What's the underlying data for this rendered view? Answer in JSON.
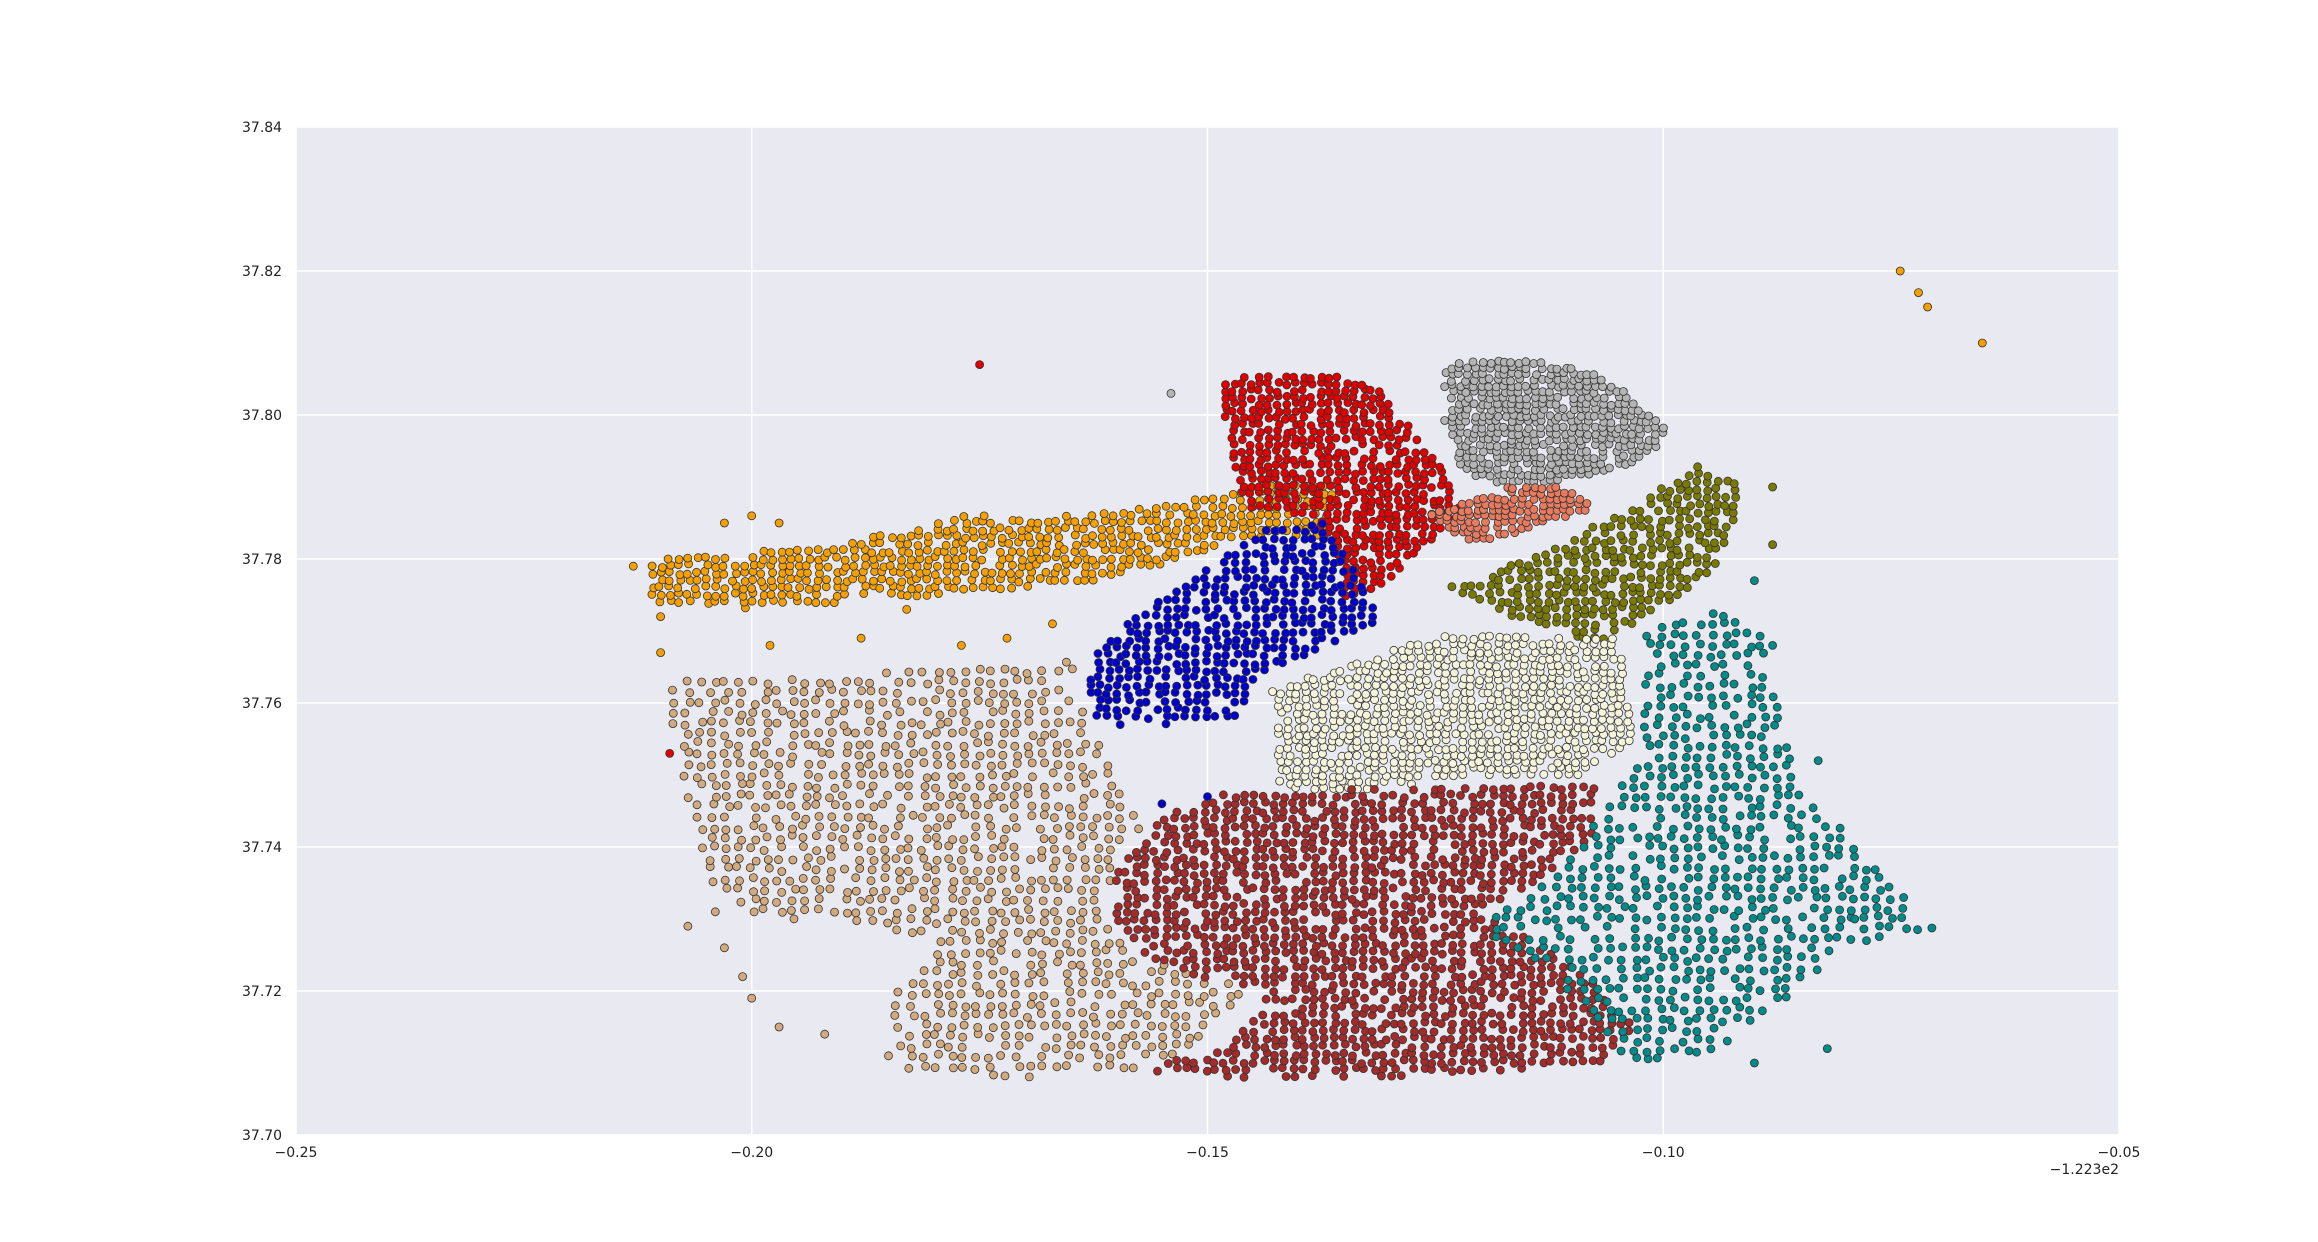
{
  "chart_data": {
    "type": "scatter",
    "title": "",
    "xlabel": "",
    "ylabel": "",
    "xlim": [
      -0.25,
      -0.05
    ],
    "ylim": [
      37.7,
      37.84
    ],
    "x_offset_label": "−1.223e2",
    "x_ticks": [
      -0.25,
      -0.2,
      -0.15,
      -0.1,
      -0.05
    ],
    "x_tick_labels": [
      "−0.25",
      "−0.20",
      "−0.15",
      "−0.10",
      "−0.05"
    ],
    "y_ticks": [
      37.7,
      37.72,
      37.74,
      37.76,
      37.78,
      37.8,
      37.82,
      37.84
    ],
    "y_tick_labels": [
      "37.70",
      "37.72",
      "37.74",
      "37.76",
      "37.78",
      "37.80",
      "37.82",
      "37.84"
    ],
    "grid": true,
    "legend": "none",
    "background_color": "#e9e9f1",
    "grid_color": "#ffffff",
    "marker_edge_color": "#333333",
    "series": [
      {
        "color": "#f5a000",
        "region": [
          [
            -0.211,
            37.774
          ],
          [
            -0.211,
            37.78
          ],
          [
            -0.19,
            37.782
          ],
          [
            -0.177,
            37.786
          ],
          [
            -0.163,
            37.786
          ],
          [
            -0.148,
            37.789
          ],
          [
            -0.142,
            37.791
          ],
          [
            -0.136,
            37.79
          ],
          [
            -0.137,
            37.783
          ],
          [
            -0.146,
            37.783
          ],
          [
            -0.153,
            37.78
          ],
          [
            -0.162,
            37.777
          ],
          [
            -0.18,
            37.775
          ],
          [
            -0.198,
            37.773
          ]
        ],
        "density": 220,
        "outliers": [
          [
            -0.213,
            37.779
          ],
          [
            -0.21,
            37.772
          ],
          [
            -0.203,
            37.785
          ],
          [
            -0.2,
            37.786
          ],
          [
            -0.197,
            37.785
          ],
          [
            -0.198,
            37.768
          ],
          [
            -0.188,
            37.769
          ],
          [
            -0.183,
            37.773
          ],
          [
            -0.177,
            37.768
          ],
          [
            -0.172,
            37.769
          ],
          [
            -0.167,
            37.771
          ],
          [
            -0.21,
            37.767
          ],
          [
            -0.074,
            37.82
          ],
          [
            -0.072,
            37.817
          ],
          [
            -0.071,
            37.815
          ],
          [
            -0.065,
            37.81
          ]
        ]
      },
      {
        "color": "#e00000",
        "region": [
          [
            -0.149,
            37.805
          ],
          [
            -0.137,
            37.806
          ],
          [
            -0.131,
            37.804
          ],
          [
            -0.128,
            37.799
          ],
          [
            -0.124,
            37.792
          ],
          [
            -0.122,
            37.786
          ],
          [
            -0.126,
            37.782
          ],
          [
            -0.13,
            37.777
          ],
          [
            -0.135,
            37.774
          ],
          [
            -0.136,
            37.782
          ],
          [
            -0.139,
            37.786
          ],
          [
            -0.146,
            37.787
          ]
        ],
        "density": 160,
        "outliers": [
          [
            -0.175,
            37.807
          ],
          [
            -0.209,
            37.753
          ]
        ]
      },
      {
        "color": "#b4b4b4",
        "region": [
          [
            -0.124,
            37.807
          ],
          [
            -0.116,
            37.808
          ],
          [
            -0.108,
            37.806
          ],
          [
            -0.104,
            37.803
          ],
          [
            -0.101,
            37.8
          ],
          [
            -0.099,
            37.797
          ],
          [
            -0.104,
            37.793
          ],
          [
            -0.11,
            37.791
          ],
          [
            -0.117,
            37.79
          ],
          [
            -0.122,
            37.792
          ],
          [
            -0.124,
            37.799
          ]
        ],
        "density": 110,
        "outliers": [
          [
            -0.154,
            37.803
          ]
        ]
      },
      {
        "color": "#e87a5e",
        "region": [
          [
            -0.126,
            37.786
          ],
          [
            -0.117,
            37.79
          ],
          [
            -0.111,
            37.79
          ],
          [
            -0.107,
            37.787
          ],
          [
            -0.115,
            37.784
          ],
          [
            -0.121,
            37.782
          ]
        ],
        "density": 40,
        "outliers": []
      },
      {
        "color": "#7a7a00",
        "region": [
          [
            -0.124,
            37.776
          ],
          [
            -0.113,
            37.781
          ],
          [
            -0.104,
            37.787
          ],
          [
            -0.096,
            37.793
          ],
          [
            -0.091,
            37.79
          ],
          [
            -0.093,
            37.783
          ],
          [
            -0.094,
            37.778
          ],
          [
            -0.101,
            37.773
          ],
          [
            -0.107,
            37.768
          ],
          [
            -0.117,
            37.772
          ]
        ],
        "density": 130,
        "outliers": [
          [
            -0.088,
            37.79
          ],
          [
            -0.088,
            37.782
          ]
        ]
      },
      {
        "color": "#0000cc",
        "region": [
          [
            -0.149,
            37.78
          ],
          [
            -0.144,
            37.784
          ],
          [
            -0.137,
            37.785
          ],
          [
            -0.134,
            37.779
          ],
          [
            -0.132,
            37.774
          ],
          [
            -0.131,
            37.771
          ],
          [
            -0.137,
            37.768
          ],
          [
            -0.144,
            37.764
          ],
          [
            -0.147,
            37.758
          ],
          [
            -0.152,
            37.757
          ],
          [
            -0.16,
            37.757
          ],
          [
            -0.163,
            37.758
          ],
          [
            -0.163,
            37.766
          ],
          [
            -0.158,
            37.772
          ],
          [
            -0.152,
            37.777
          ]
        ],
        "density": 130,
        "outliers": [
          [
            -0.155,
            37.746
          ],
          [
            -0.15,
            37.747
          ]
        ]
      },
      {
        "color": "#f4f4dc",
        "region": [
          [
            -0.143,
            37.762
          ],
          [
            -0.131,
            37.767
          ],
          [
            -0.122,
            37.77
          ],
          [
            -0.114,
            37.769
          ],
          [
            -0.105,
            37.769
          ],
          [
            -0.104,
            37.762
          ],
          [
            -0.103,
            37.755
          ],
          [
            -0.109,
            37.75
          ],
          [
            -0.12,
            37.75
          ],
          [
            -0.132,
            37.748
          ],
          [
            -0.142,
            37.748
          ]
        ],
        "density": 160,
        "outliers": []
      },
      {
        "color": "#d2aa7e",
        "region": [
          [
            -0.21,
            37.764
          ],
          [
            -0.19,
            37.764
          ],
          [
            -0.175,
            37.765
          ],
          [
            -0.165,
            37.766
          ],
          [
            -0.164,
            37.76
          ],
          [
            -0.161,
            37.752
          ],
          [
            -0.157,
            37.743
          ],
          [
            -0.16,
            37.738
          ],
          [
            -0.162,
            37.73
          ],
          [
            -0.158,
            37.725
          ],
          [
            -0.15,
            37.722
          ],
          [
            -0.145,
            37.72
          ],
          [
            -0.152,
            37.712
          ],
          [
            -0.158,
            37.709
          ],
          [
            -0.17,
            37.708
          ],
          [
            -0.183,
            37.709
          ],
          [
            -0.185,
            37.719
          ],
          [
            -0.179,
            37.726
          ],
          [
            -0.19,
            37.73
          ],
          [
            -0.199,
            37.73
          ],
          [
            -0.205,
            37.735
          ]
        ],
        "density": 300,
        "outliers": [
          [
            -0.207,
            37.729
          ],
          [
            -0.203,
            37.726
          ],
          [
            -0.201,
            37.722
          ],
          [
            -0.2,
            37.719
          ],
          [
            -0.197,
            37.715
          ],
          [
            -0.192,
            37.714
          ],
          [
            -0.185,
            37.711
          ],
          [
            -0.204,
            37.731
          ]
        ]
      },
      {
        "color": "#a52a2a",
        "region": [
          [
            -0.16,
            37.737
          ],
          [
            -0.155,
            37.744
          ],
          [
            -0.148,
            37.748
          ],
          [
            -0.138,
            37.748
          ],
          [
            -0.125,
            37.748
          ],
          [
            -0.111,
            37.749
          ],
          [
            -0.107,
            37.748
          ],
          [
            -0.108,
            37.741
          ],
          [
            -0.114,
            37.735
          ],
          [
            -0.12,
            37.731
          ],
          [
            -0.112,
            37.725
          ],
          [
            -0.107,
            37.721
          ],
          [
            -0.103,
            37.715
          ],
          [
            -0.107,
            37.71
          ],
          [
            -0.118,
            37.709
          ],
          [
            -0.13,
            37.708
          ],
          [
            -0.146,
            37.708
          ],
          [
            -0.157,
            37.709
          ],
          [
            -0.147,
            37.713
          ],
          [
            -0.143,
            37.72
          ],
          [
            -0.151,
            37.722
          ],
          [
            -0.157,
            37.725
          ],
          [
            -0.16,
            37.73
          ]
        ],
        "density": 330,
        "outliers": []
      },
      {
        "color": "#008b8b",
        "region": [
          [
            -0.103,
            37.77
          ],
          [
            -0.094,
            37.773
          ],
          [
            -0.089,
            37.769
          ],
          [
            -0.087,
            37.757
          ],
          [
            -0.085,
            37.748
          ],
          [
            -0.08,
            37.742
          ],
          [
            -0.074,
            37.734
          ],
          [
            -0.07,
            37.728
          ],
          [
            -0.08,
            37.726
          ],
          [
            -0.086,
            37.719
          ],
          [
            -0.094,
            37.712
          ],
          [
            -0.104,
            37.709
          ],
          [
            -0.108,
            37.717
          ],
          [
            -0.112,
            37.722
          ],
          [
            -0.12,
            37.729
          ],
          [
            -0.112,
            37.736
          ],
          [
            -0.107,
            37.744
          ],
          [
            -0.103,
            37.752
          ],
          [
            -0.102,
            37.76
          ]
        ],
        "density": 270,
        "outliers": [
          [
            -0.09,
            37.777
          ],
          [
            -0.088,
            37.768
          ],
          [
            -0.083,
            37.752
          ],
          [
            -0.079,
            37.73
          ],
          [
            -0.082,
            37.712
          ],
          [
            -0.09,
            37.71
          ]
        ]
      }
    ]
  }
}
